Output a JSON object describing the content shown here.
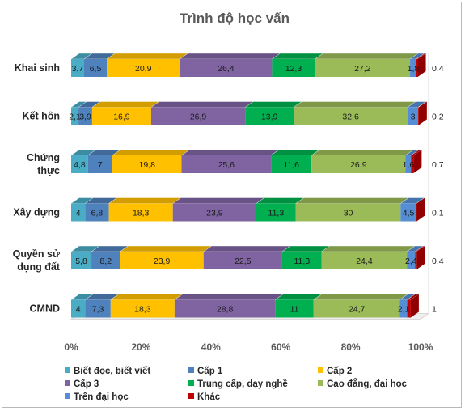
{
  "chart_data": {
    "type": "bar",
    "orientation": "horizontal",
    "stacked": "percent",
    "title": "Trình độ học vấn",
    "categories": [
      "Khai sinh",
      "Kết hôn",
      "Chứng thực",
      "Xây dựng",
      "Quyền sử dụng đất",
      "CMND"
    ],
    "category_display": [
      [
        "Khai sinh"
      ],
      [
        "Kết hôn"
      ],
      [
        "Chứng",
        "thực"
      ],
      [
        "Xây dựng"
      ],
      [
        "Quyền sử",
        "dụng đất"
      ],
      [
        "CMND"
      ]
    ],
    "series": [
      {
        "name": "Biết đọc, biết viết",
        "color": "#4bacc6",
        "values": [
          3.7,
          2.1,
          4.8,
          4,
          5.8,
          4
        ],
        "labels": [
          "3,7",
          "2,1",
          "4,8",
          "4",
          "5,8",
          "4"
        ]
      },
      {
        "name": "Cấp 1",
        "color": "#4f81bd",
        "values": [
          6.5,
          3.9,
          7,
          6.8,
          8.2,
          7.3
        ],
        "labels": [
          "6,5",
          "3,9",
          "7",
          "6,8",
          "8,2",
          "7,3"
        ]
      },
      {
        "name": "Cấp 2",
        "color": "#ffc000",
        "values": [
          20.9,
          16.9,
          19.8,
          18.3,
          23.9,
          18.3
        ],
        "labels": [
          "20,9",
          "16,9",
          "19,8",
          "18,3",
          "23,9",
          "18,3"
        ]
      },
      {
        "name": "Cấp 3",
        "color": "#8064a2",
        "values": [
          26.4,
          26.9,
          25.6,
          23.9,
          22.5,
          28.8
        ],
        "labels": [
          "26,4",
          "26,9",
          "25,6",
          "23,9",
          "22,5",
          "28,8"
        ]
      },
      {
        "name": "Trung cấp, dạy nghề",
        "color": "#00b050",
        "values": [
          12.3,
          13.9,
          11.6,
          11.3,
          11.3,
          11
        ],
        "labels": [
          "12,3",
          "13,9",
          "11,6",
          "11,3",
          "11,3",
          "11"
        ]
      },
      {
        "name": "Cao đẳng, đại học",
        "color": "#9bbb59",
        "values": [
          27.2,
          32.6,
          26.9,
          30,
          24.4,
          24.7
        ],
        "labels": [
          "27,2",
          "32,6",
          "26,9",
          "30",
          "24,4",
          "24,7"
        ]
      },
      {
        "name": "Trên đại học",
        "color": "#558ed5",
        "values": [
          1.8,
          3,
          1.6,
          4.5,
          2.4,
          2.1
        ],
        "labels": [
          "1,8",
          "3",
          "1,6",
          "4,5",
          "2,4",
          "2,1"
        ]
      },
      {
        "name": "Khác",
        "color": "#c00000",
        "values": [
          0.4,
          0.2,
          0.7,
          0.1,
          0.4,
          1
        ],
        "labels": [
          "0,4",
          "0,2",
          "0,7",
          "0,1",
          "0,4",
          "1"
        ]
      }
    ],
    "x_ticks": [
      "0%",
      "20%",
      "40%",
      "60%",
      "80%",
      "100%"
    ],
    "xlim": [
      0,
      100
    ],
    "grid": false,
    "legend_position": "bottom"
  }
}
